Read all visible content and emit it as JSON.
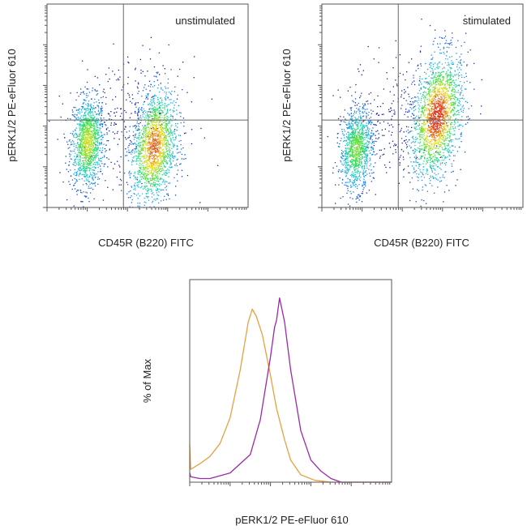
{
  "chart_data": [
    {
      "type": "scatter",
      "subtype": "flow-cytometry-density-dot-plot",
      "title": "unstimulated",
      "xlabel": "CD45R (B220) FITC",
      "ylabel": "pERK1/2 PE-eFluor 610",
      "xscale": "log",
      "yscale": "log",
      "xlim": [
        0,
        100
      ],
      "ylim": [
        0,
        100
      ],
      "quadrant_gate": {
        "x": 38,
        "y": 43
      },
      "colormap": [
        "#1a1aa0",
        "#1e90ff",
        "#20d0c0",
        "#40e040",
        "#f0e020",
        "#e03010"
      ],
      "populations": [
        {
          "x": 20,
          "y": 32,
          "sx": 4,
          "sy": 11,
          "tilt": 0.15,
          "n": 1300
        },
        {
          "x": 53,
          "y": 30,
          "sx": 5.5,
          "sy": 14,
          "tilt": 0.35,
          "n": 1700
        },
        {
          "x": 40,
          "y": 45,
          "sx": 14,
          "sy": 14,
          "tilt": 0,
          "n": 250
        }
      ]
    },
    {
      "type": "scatter",
      "subtype": "flow-cytometry-density-dot-plot",
      "title": "stimulated",
      "xlabel": "CD45R (B220) FITC",
      "ylabel": "pERK1/2 PE-eFluor 610",
      "xscale": "log",
      "yscale": "log",
      "xlim": [
        0,
        100
      ],
      "ylim": [
        0,
        100
      ],
      "quadrant_gate": {
        "x": 38,
        "y": 43
      },
      "colormap": [
        "#1a1aa0",
        "#1e90ff",
        "#20d0c0",
        "#40e040",
        "#f0e020",
        "#e03010"
      ],
      "populations": [
        {
          "x": 17,
          "y": 29,
          "sx": 4,
          "sy": 10,
          "tilt": 0.2,
          "n": 1100
        },
        {
          "x": 57,
          "y": 45,
          "sx": 6,
          "sy": 15,
          "tilt": 0.45,
          "n": 1900
        },
        {
          "x": 38,
          "y": 45,
          "sx": 13,
          "sy": 15,
          "tilt": 0,
          "n": 250
        }
      ]
    },
    {
      "type": "line",
      "subtype": "histogram-overlay",
      "xlabel": "pERK1/2 PE-eFluor 610",
      "ylabel": "% of Max",
      "xscale": "log",
      "xlim": [
        0,
        1
      ],
      "ylim": [
        0,
        110
      ],
      "series": [
        {
          "color": "#e8a040",
          "x": [
            0,
            0.005,
            0.02,
            0.05,
            0.1,
            0.15,
            0.2,
            0.25,
            0.29,
            0.31,
            0.33,
            0.36,
            0.4,
            0.43,
            0.47,
            0.5,
            0.55,
            0.62,
            0.7,
            1.0
          ],
          "y": [
            20,
            7,
            8,
            10,
            14,
            21,
            35,
            61,
            87,
            94,
            90,
            80,
            58,
            40,
            23,
            12,
            4,
            1,
            0,
            0
          ]
        },
        {
          "color": "#9a2aa8",
          "x": [
            0,
            0.005,
            0.05,
            0.1,
            0.2,
            0.3,
            0.35,
            0.4,
            0.42,
            0.43,
            0.445,
            0.47,
            0.5,
            0.55,
            0.6,
            0.65,
            0.7,
            0.75,
            1.0
          ],
          "y": [
            5,
            3,
            2,
            2,
            5,
            15,
            34,
            68,
            84,
            88,
            100,
            87,
            61,
            28,
            12,
            6,
            2,
            0,
            0
          ]
        }
      ]
    }
  ]
}
